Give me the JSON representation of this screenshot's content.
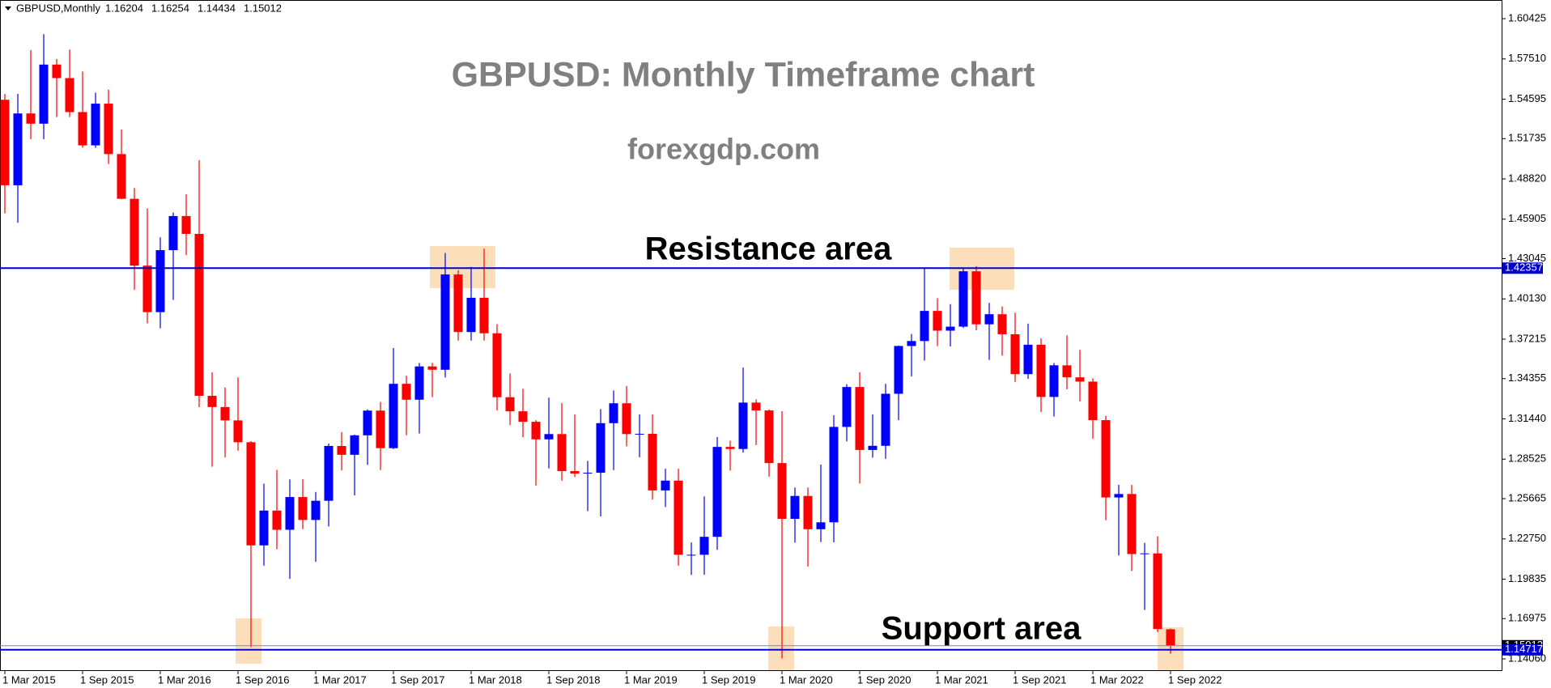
{
  "chart_data": {
    "type": "candlestick",
    "symbol": "GBPUSD,Monthly",
    "title": "GBPUSD: Monthly Timeframe chart",
    "subtitle": "forexgdp.com",
    "annotations": [
      "Resistance area",
      "Support area"
    ],
    "up_color": "#0000ff",
    "down_color": "#ff0000",
    "categories": [
      "1 Mar 2015",
      null,
      null,
      null,
      null,
      null,
      "1 Sep 2015",
      null,
      null,
      null,
      null,
      null,
      "1 Mar 2016",
      null,
      null,
      null,
      null,
      null,
      "1 Sep 2016",
      null,
      null,
      null,
      null,
      null,
      "1 Mar 2017",
      null,
      null,
      null,
      null,
      null,
      "1 Sep 2017",
      null,
      null,
      null,
      null,
      null,
      "1 Mar 2018",
      null,
      null,
      null,
      null,
      null,
      "1 Sep 2018",
      null,
      null,
      null,
      null,
      null,
      "1 Mar 2019",
      null,
      null,
      null,
      null,
      null,
      "1 Sep 2019",
      null,
      null,
      null,
      null,
      null,
      "1 Mar 2020",
      null,
      null,
      null,
      null,
      null,
      "1 Sep 2020",
      null,
      null,
      null,
      null,
      null,
      "1 Mar 2021",
      null,
      null,
      null,
      null,
      null,
      "1 Sep 2021",
      null,
      null,
      null,
      null,
      null,
      "1 Mar 2022",
      null,
      null,
      null,
      null,
      null,
      "1 Sep 2022"
    ],
    "ohlc": [
      [
        1.5455,
        1.5497,
        1.4633,
        1.4836
      ],
      [
        1.4836,
        1.5498,
        1.4565,
        1.5356
      ],
      [
        1.5356,
        1.5815,
        1.517,
        1.5282
      ],
      [
        1.5282,
        1.593,
        1.517,
        1.571
      ],
      [
        1.571,
        1.575,
        1.533,
        1.5612
      ],
      [
        1.5612,
        1.5819,
        1.533,
        1.5366
      ],
      [
        1.5366,
        1.566,
        1.5108,
        1.5125
      ],
      [
        1.5125,
        1.5507,
        1.5107,
        1.5427
      ],
      [
        1.5427,
        1.5529,
        1.499,
        1.5062
      ],
      [
        1.5062,
        1.524,
        1.4735,
        1.4738
      ],
      [
        1.4738,
        1.4816,
        1.4078,
        1.4254
      ],
      [
        1.4254,
        1.4668,
        1.3836,
        1.3917
      ],
      [
        1.3917,
        1.4459,
        1.38,
        1.4366
      ],
      [
        1.4366,
        1.4639,
        1.4006,
        1.4613
      ],
      [
        1.4613,
        1.477,
        1.433,
        1.4484
      ],
      [
        1.4484,
        1.5018,
        1.3229,
        1.3311
      ],
      [
        1.3311,
        1.3482,
        1.2798,
        1.323
      ],
      [
        1.323,
        1.3372,
        1.2865,
        1.3133
      ],
      [
        1.3133,
        1.3445,
        1.2914,
        1.2975
      ],
      [
        1.2975,
        1.2983,
        1.1491,
        1.2228
      ],
      [
        1.2228,
        1.2675,
        1.2081,
        1.248
      ],
      [
        1.248,
        1.2775,
        1.22,
        1.2341
      ],
      [
        1.2341,
        1.2706,
        1.1986,
        1.2578
      ],
      [
        1.2578,
        1.2707,
        1.2345,
        1.2412
      ],
      [
        1.2412,
        1.2615,
        1.2109,
        1.2551
      ],
      [
        1.2551,
        1.2965,
        1.2365,
        1.2948
      ],
      [
        1.2948,
        1.3048,
        1.2771,
        1.2884
      ],
      [
        1.2884,
        1.303,
        1.259,
        1.3025
      ],
      [
        1.3025,
        1.3213,
        1.2811,
        1.3204
      ],
      [
        1.3204,
        1.3267,
        1.2774,
        1.2932
      ],
      [
        1.2932,
        1.3657,
        1.2926,
        1.3398
      ],
      [
        1.3398,
        1.3456,
        1.3026,
        1.3283
      ],
      [
        1.3283,
        1.3549,
        1.3038,
        1.3524
      ],
      [
        1.3524,
        1.355,
        1.3302,
        1.35
      ],
      [
        1.35,
        1.4346,
        1.3444,
        1.419
      ],
      [
        1.419,
        1.422,
        1.3711,
        1.3773
      ],
      [
        1.3773,
        1.4245,
        1.3711,
        1.4021
      ],
      [
        1.4021,
        1.4377,
        1.3712,
        1.3764
      ],
      [
        1.3764,
        1.383,
        1.3205,
        1.3301
      ],
      [
        1.3301,
        1.3473,
        1.3099,
        1.3199
      ],
      [
        1.3199,
        1.3362,
        1.3011,
        1.3123
      ],
      [
        1.3123,
        1.3135,
        1.2661,
        1.2996
      ],
      [
        1.2996,
        1.3298,
        1.2785,
        1.3034
      ],
      [
        1.3034,
        1.3259,
        1.2696,
        1.2766
      ],
      [
        1.2766,
        1.3176,
        1.2723,
        1.2748
      ],
      [
        1.2748,
        1.284,
        1.2476,
        1.2754
      ],
      [
        1.2754,
        1.3215,
        1.2438,
        1.3113
      ],
      [
        1.3113,
        1.335,
        1.2773,
        1.3257
      ],
      [
        1.3257,
        1.3382,
        1.2945,
        1.3034
      ],
      [
        1.3034,
        1.3177,
        1.2866,
        1.3036
      ],
      [
        1.3036,
        1.3177,
        1.2559,
        1.2626
      ],
      [
        1.2626,
        1.2783,
        1.2506,
        1.2697
      ],
      [
        1.2697,
        1.2783,
        1.2081,
        1.216
      ],
      [
        1.216,
        1.2249,
        1.2014,
        1.216
      ],
      [
        1.216,
        1.2583,
        1.2015,
        1.229
      ],
      [
        1.229,
        1.3013,
        1.2196,
        1.2941
      ],
      [
        1.2941,
        1.2986,
        1.2769,
        1.2926
      ],
      [
        1.2926,
        1.3516,
        1.29,
        1.3262
      ],
      [
        1.3262,
        1.3285,
        1.2954,
        1.3205
      ],
      [
        1.3205,
        1.3212,
        1.2726,
        1.2824
      ],
      [
        1.2824,
        1.32,
        1.1409,
        1.242
      ],
      [
        1.242,
        1.2647,
        1.2248,
        1.2586
      ],
      [
        1.2586,
        1.2647,
        1.2075,
        1.2345
      ],
      [
        1.2345,
        1.2813,
        1.2252,
        1.2395
      ],
      [
        1.2395,
        1.317,
        1.225,
        1.3086
      ],
      [
        1.3086,
        1.3395,
        1.2981,
        1.3375
      ],
      [
        1.3375,
        1.3482,
        1.2676,
        1.2919
      ],
      [
        1.2919,
        1.3177,
        1.2863,
        1.2949
      ],
      [
        1.2949,
        1.3398,
        1.2855,
        1.3326
      ],
      [
        1.3326,
        1.3675,
        1.3135,
        1.3672
      ],
      [
        1.3672,
        1.3759,
        1.3451,
        1.3708
      ],
      [
        1.3708,
        1.4241,
        1.3566,
        1.3926
      ],
      [
        1.3926,
        1.4018,
        1.3671,
        1.3783
      ],
      [
        1.3783,
        1.3975,
        1.3669,
        1.3812
      ],
      [
        1.3812,
        1.4234,
        1.3802,
        1.4213
      ],
      [
        1.4213,
        1.425,
        1.3786,
        1.3829
      ],
      [
        1.3829,
        1.3984,
        1.3571,
        1.3902
      ],
      [
        1.3902,
        1.3958,
        1.3602,
        1.3757
      ],
      [
        1.3757,
        1.3913,
        1.3412,
        1.3468
      ],
      [
        1.3468,
        1.3834,
        1.3434,
        1.3681
      ],
      [
        1.3681,
        1.3728,
        1.3194,
        1.3303
      ],
      [
        1.3303,
        1.3549,
        1.3161,
        1.3532
      ],
      [
        1.3532,
        1.3749,
        1.3358,
        1.3445
      ],
      [
        1.3445,
        1.3644,
        1.3271,
        1.3414
      ],
      [
        1.3414,
        1.3438,
        1.3,
        1.3135
      ],
      [
        1.3135,
        1.3166,
        1.241,
        1.2575
      ],
      [
        1.2575,
        1.2667,
        1.2155,
        1.26
      ],
      [
        1.26,
        1.2666,
        1.2042,
        1.2165
      ],
      [
        1.2165,
        1.2246,
        1.176,
        1.217
      ],
      [
        1.217,
        1.2294,
        1.16,
        1.1622
      ],
      [
        1.16204,
        1.16254,
        1.14434,
        1.15012
      ]
    ],
    "ylim": [
      1.1324,
      1.6166
    ],
    "yticks": [
      1.60425,
      {
        "value": 1.5751,
        "label": "1.57510"
      },
      1.54595,
      1.51735,
      {
        "value": 1.4882,
        "label": "1.48820"
      },
      1.45905,
      1.43045,
      {
        "value": 1.4013,
        "label": "1.40130"
      },
      1.37215,
      1.34355,
      {
        "value": 1.3144,
        "label": "1.31440"
      },
      1.28525,
      1.25665,
      {
        "value": 1.2275,
        "label": "1.22750"
      },
      1.19835,
      1.16975,
      {
        "value": 1.1406,
        "label": "1.14060"
      }
    ],
    "hlines": [
      {
        "value": 1.42357,
        "color": "#0000cc"
      },
      {
        "value": 1.14717,
        "color": "#0000cc"
      }
    ]
  }
}
